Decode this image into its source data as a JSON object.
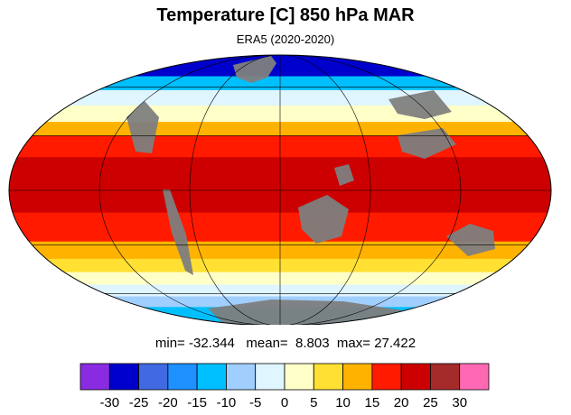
{
  "title": "Temperature [C] 850 hPa MAR",
  "subtitle": "ERA5 (2020-2020)",
  "stats": {
    "min_label": "min=",
    "min": "-32.344",
    "mean_label": "mean=",
    "mean": "8.803",
    "max_label": "max=",
    "max": "27.422"
  },
  "map": {
    "projection": "mollweide",
    "land_mask_color": "#7f7f7f",
    "zonal_bands": [
      {
        "lat_from": 90,
        "lat_to": 68,
        "value": -30
      },
      {
        "lat_from": 68,
        "lat_to": 58,
        "value": -12
      },
      {
        "lat_from": 58,
        "lat_to": 48,
        "value": -3
      },
      {
        "lat_from": 48,
        "lat_to": 38,
        "value": 2
      },
      {
        "lat_from": 38,
        "lat_to": 30,
        "value": 12
      },
      {
        "lat_from": 30,
        "lat_to": 18,
        "value": 17
      },
      {
        "lat_from": 18,
        "lat_to": -12,
        "value": 22
      },
      {
        "lat_from": -12,
        "lat_to": -28,
        "value": 17
      },
      {
        "lat_from": -28,
        "lat_to": -38,
        "value": 12
      },
      {
        "lat_from": -38,
        "lat_to": -46,
        "value": 7
      },
      {
        "lat_from": -46,
        "lat_to": -54,
        "value": 2
      },
      {
        "lat_from": -54,
        "lat_to": -62,
        "value": -3
      },
      {
        "lat_from": -62,
        "lat_to": -70,
        "value": -8
      },
      {
        "lat_from": -70,
        "lat_to": -90,
        "value": -14
      }
    ]
  },
  "colorbar": {
    "colors": [
      "#8a2be2",
      "#0000cd",
      "#4169e1",
      "#1e90ff",
      "#00bfff",
      "#a0cfff",
      "#dff5ff",
      "#ffffc8",
      "#ffe033",
      "#ffb300",
      "#ff1a00",
      "#cc0000",
      "#a52a2a",
      "#ff69b4"
    ],
    "ticks": [
      "-30",
      "-25",
      "-20",
      "-15",
      "-10",
      "-5",
      "0",
      "5",
      "10",
      "15",
      "20",
      "25",
      "30"
    ],
    "bounds": [
      -30,
      -25,
      -20,
      -15,
      -10,
      -5,
      0,
      5,
      10,
      15,
      20,
      25,
      30
    ]
  }
}
